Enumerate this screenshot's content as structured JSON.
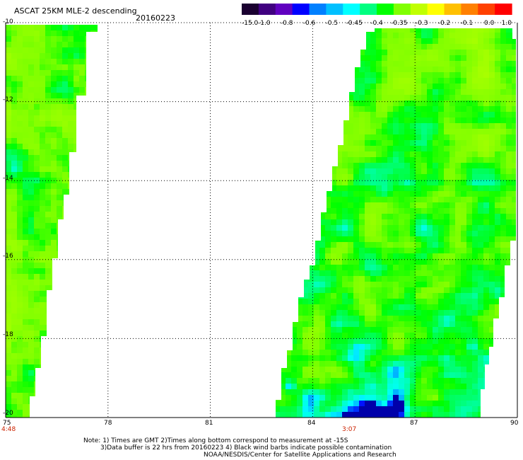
{
  "header": {
    "title": "ASCAT 25KM MLE-2 descending",
    "date": "20160223"
  },
  "colorbar": {
    "labels": [
      "-15.0",
      "-1.0",
      "-0.8",
      "-0.6",
      "-0.5",
      "-0.45",
      "-0.4",
      "-0.35",
      "-0.3",
      "-0.2",
      "-0.1",
      "0.0",
      "1.0"
    ],
    "colors": [
      "#1a0030",
      "#400080",
      "#6000c0",
      "#0000ff",
      "#0080ff",
      "#00c0ff",
      "#00ffff",
      "#00ff80",
      "#00ff00",
      "#80ff00",
      "#c0ff00",
      "#ffff00",
      "#ffc000",
      "#ff8000",
      "#ff4000",
      "#ff0000"
    ]
  },
  "axes": {
    "x_ticks": [
      "75",
      "78",
      "81",
      "84",
      "87",
      "90"
    ],
    "y_ticks": [
      "-10",
      "-12",
      "-14",
      "-16",
      "-18",
      "-20"
    ],
    "x_range": [
      75,
      90
    ],
    "y_range": [
      -20,
      -10
    ]
  },
  "swath_times": {
    "left": "4:48",
    "right": "3:07"
  },
  "notes": {
    "line1": "Note: 1) Times are GMT 2)Times along bottom correspond to measurement at -15S",
    "line2": "3)Data buffer is 22 hrs from 20160223 4) Black wind barbs indicate possible contamination",
    "line3": "NOAA/NESDIS/Center for Satellite Applications and Research"
  }
}
